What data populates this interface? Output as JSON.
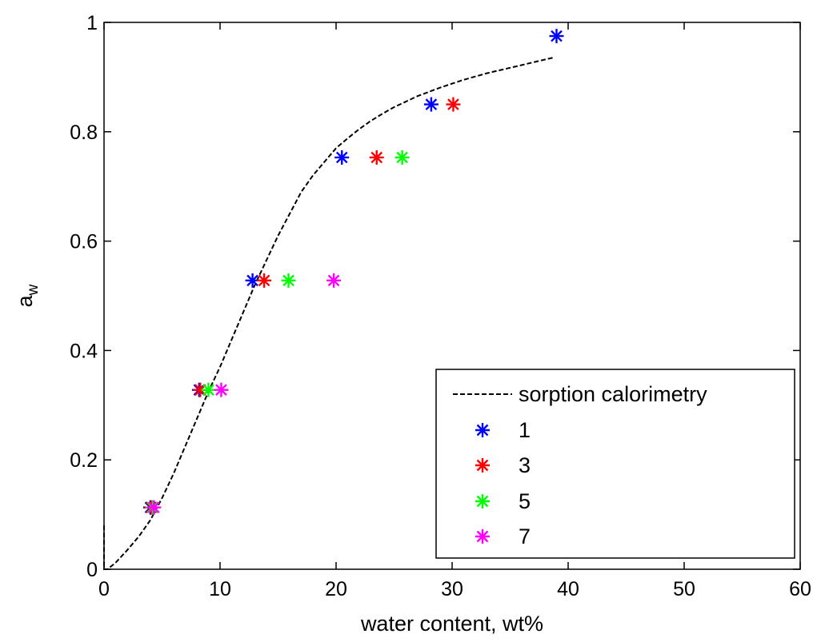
{
  "chart_data": {
    "type": "scatter",
    "title": "",
    "xlabel": "water content, wt%",
    "ylabel": {
      "base": "a",
      "subscript": "w"
    },
    "xlim": [
      0,
      60
    ],
    "ylim": [
      0,
      1
    ],
    "xticks": [
      0,
      10,
      20,
      30,
      40,
      50,
      60
    ],
    "yticks": [
      0,
      0.2,
      0.4,
      0.6,
      0.8,
      1
    ],
    "xtick_labels": [
      "0",
      "10",
      "20",
      "30",
      "40",
      "50",
      "60"
    ],
    "ytick_labels": [
      "0",
      "0.2",
      "0.4",
      "0.6",
      "0.8",
      "1"
    ],
    "grid": false,
    "legend_position": "bottom-right",
    "line": {
      "name": "sorption calorimetry",
      "color": "#000000",
      "style": "dashed",
      "x": [
        0.0,
        0.0,
        0.3,
        1,
        2,
        3,
        4,
        5,
        6,
        7,
        8,
        9,
        10,
        11,
        12,
        13,
        14,
        15,
        16,
        17,
        18,
        19,
        20,
        21,
        22,
        23,
        24,
        25,
        26,
        27,
        28,
        29,
        30,
        31,
        32,
        33,
        34,
        35,
        36,
        37,
        38,
        38.8
      ],
      "y": [
        0.08,
        0.0,
        0.0,
        0.012,
        0.035,
        0.06,
        0.09,
        0.13,
        0.175,
        0.225,
        0.275,
        0.325,
        0.37,
        0.42,
        0.47,
        0.52,
        0.565,
        0.61,
        0.65,
        0.69,
        0.72,
        0.745,
        0.77,
        0.788,
        0.805,
        0.82,
        0.833,
        0.845,
        0.855,
        0.865,
        0.873,
        0.881,
        0.888,
        0.895,
        0.901,
        0.907,
        0.912,
        0.917,
        0.922,
        0.927,
        0.932,
        0.936
      ]
    },
    "series": [
      {
        "name": "1",
        "color": "#0000ff",
        "marker": "asterisk",
        "x": [
          4.0,
          8.2,
          12.8,
          20.5,
          28.2,
          39.0
        ],
        "y": [
          0.113,
          0.328,
          0.528,
          0.753,
          0.85,
          0.975
        ]
      },
      {
        "name": "3",
        "color": "#ff0000",
        "marker": "asterisk",
        "x": [
          4.1,
          8.3,
          13.8,
          23.5,
          30.1
        ],
        "y": [
          0.113,
          0.328,
          0.528,
          0.753,
          0.85
        ]
      },
      {
        "name": "5",
        "color": "#00ff00",
        "marker": "asterisk",
        "x": [
          4.2,
          9.0,
          15.9,
          25.7
        ],
        "y": [
          0.113,
          0.328,
          0.528,
          0.753
        ]
      },
      {
        "name": "7",
        "color": "#ff00ff",
        "marker": "asterisk",
        "x": [
          4.3,
          10.1,
          19.8
        ],
        "y": [
          0.113,
          0.328,
          0.528
        ]
      }
    ]
  }
}
